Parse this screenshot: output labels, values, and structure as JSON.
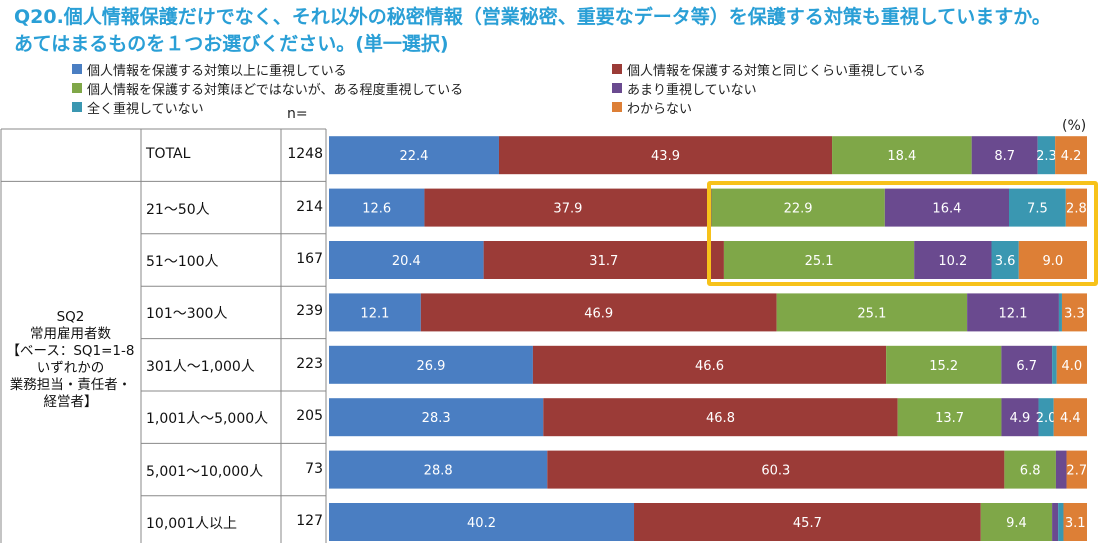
{
  "title": {
    "line1": "Q20.個人情報保護だけでなく、それ以外の秘密情報（営業秘密、重要なデータ等）を保護する対策も重視していますか。",
    "line2": "あてはまるものを１つお選びください。(単一選択)"
  },
  "n_label": "n=",
  "percent_label": "(%)",
  "group_label": {
    "line1": "SQ2",
    "line2": "常用雇用者数",
    "line3": "【ベース：SQ1=1-8",
    "line4": "いずれかの",
    "line5": "業務担当・責任者・",
    "line6": "経営者】"
  },
  "colors": {
    "s1": "#4a7ec2",
    "s2": "#9b3b37",
    "s3": "#7fa748",
    "s4": "#6a4a8f",
    "s5": "#3a97b1",
    "s6": "#dd7f36",
    "highlight": "#f7c21a",
    "grid": "#888888"
  },
  "chart_data": {
    "type": "bar",
    "orientation": "horizontal",
    "stacked": true,
    "xlim": [
      0,
      100
    ],
    "categories": [
      "TOTAL",
      "21～50人",
      "51～100人",
      "101～300人",
      "301人～1,000人",
      "1,001人～5,000人",
      "5,001～10,000人",
      "10,001人以上"
    ],
    "n": [
      1248,
      214,
      167,
      239,
      223,
      205,
      73,
      127
    ],
    "series": [
      {
        "name": "個人情報を保護する対策以上に重視している",
        "values": [
          22.4,
          12.6,
          20.4,
          12.1,
          26.9,
          28.3,
          28.8,
          40.2
        ]
      },
      {
        "name": "個人情報を保護する対策と同じくらい重視している",
        "values": [
          43.9,
          37.9,
          31.7,
          46.9,
          46.6,
          46.8,
          60.3,
          45.7
        ]
      },
      {
        "name": "個人情報を保護する対策ほどではないが、ある程度重視している",
        "values": [
          18.4,
          22.9,
          25.1,
          25.1,
          15.2,
          13.7,
          6.8,
          9.4
        ]
      },
      {
        "name": "あまり重視していない",
        "values": [
          8.7,
          16.4,
          10.2,
          12.1,
          6.7,
          4.9,
          1.4,
          0.8
        ]
      },
      {
        "name": "全く重視していない",
        "values": [
          2.3,
          7.5,
          3.6,
          0.4,
          0.6,
          2.0,
          0.0,
          0.7
        ]
      },
      {
        "name": "わからない",
        "values": [
          4.2,
          2.8,
          9.0,
          3.3,
          4.0,
          4.4,
          2.7,
          3.1
        ]
      }
    ],
    "hidden_labels": [
      [],
      [],
      [],
      [
        4
      ],
      [
        4
      ],
      [],
      [
        3,
        4
      ],
      [
        3,
        4
      ]
    ],
    "highlighted_rows": [
      "21～50人",
      "51～100人"
    ]
  }
}
